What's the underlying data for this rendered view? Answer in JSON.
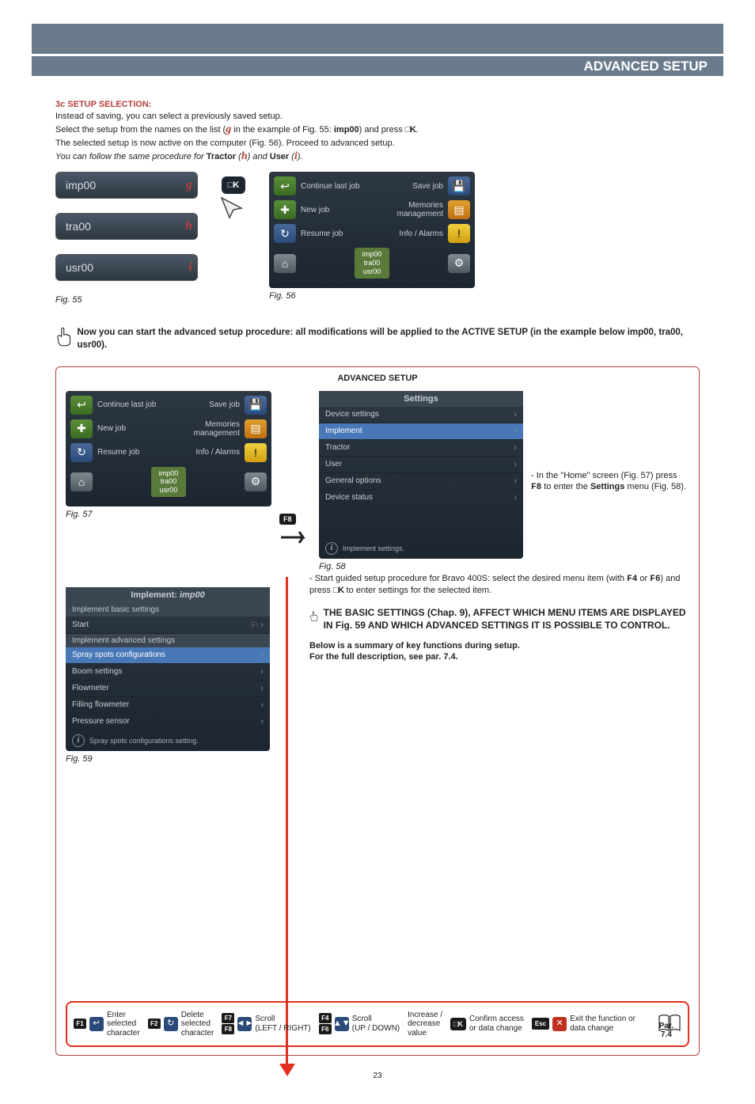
{
  "header": {
    "title": "ADVANCED SETUP"
  },
  "section3c": {
    "heading": "3c SETUP SELECTION:",
    "line1": "Instead of saving, you can select a previously saved setup.",
    "line2a": "Select the setup from the names on the list (",
    "g": "g",
    "line2b": " in the example of Fig. 55: ",
    "imp00": "imp00",
    "line2c": ") and press ",
    "ok": "□K",
    "line2d": ".",
    "line3": "The selected setup is now active on the computer (Fig. 56). Proceed to advanced setup.",
    "line4a": "You can follow the same procedure for ",
    "tractor": "Tractor",
    "line4b": " (",
    "h": "h",
    "line4c": ") and ",
    "user": "User",
    "line4d": " (",
    "i": "i",
    "line4e": ")."
  },
  "fig55": {
    "items": [
      {
        "label": "imp00",
        "letter": "g"
      },
      {
        "label": "tra00",
        "letter": "h"
      },
      {
        "label": "usr00",
        "letter": "i"
      }
    ],
    "caption": "Fig. 55",
    "ok_label": "□K"
  },
  "fig56": {
    "rows": [
      {
        "left_icon": "↩",
        "left_color": "green",
        "left_label": "Continue last job",
        "right_label": "Save job",
        "right_icon": "💾",
        "right_color": "blue"
      },
      {
        "left_icon": "✚",
        "left_color": "green",
        "left_label": "New job",
        "right_label": "Memories\nmanagement",
        "right_icon": "▤",
        "right_color": "orange"
      },
      {
        "left_icon": "↻",
        "left_color": "blue",
        "left_label": "Resume job",
        "right_label": "Info / Alarms",
        "right_icon": "!",
        "right_color": "yellow"
      }
    ],
    "status": [
      "imp00",
      "tra00",
      "usr00"
    ],
    "caption": "Fig. 56"
  },
  "main_note": "Now you can start the advanced setup procedure: all modifications will be applied to the ACTIVE SETUP (in the example below imp00, tra00, usr00).",
  "advanced_setup": {
    "title": "ADVANCED SETUP",
    "fig57_caption": "Fig. 57",
    "fig58": {
      "header": "Settings",
      "items": [
        {
          "label": "Device settings",
          "highlight": false
        },
        {
          "label": "Implement",
          "highlight": true
        },
        {
          "label": "Tractor",
          "highlight": false
        },
        {
          "label": "User",
          "highlight": false
        },
        {
          "label": "General options",
          "highlight": false
        },
        {
          "label": "Device status",
          "highlight": false
        }
      ],
      "info": "Implement settings.",
      "caption": "Fig. 58",
      "fb_label": "F8"
    },
    "right_text_a": "- In the \"Home\" screen (Fig. 57) press ",
    "right_text_fb": "F8",
    "right_text_b": " to enter the ",
    "right_text_settings": "Settings",
    "right_text_c": " menu (Fig. 58).",
    "fig59": {
      "header": "Implement: imp00",
      "section1": "Implement basic settings",
      "start": "Start",
      "section2": "Implement advanced settings",
      "items": [
        {
          "label": "Spray spots configurations",
          "highlight": true
        },
        {
          "label": "Boom settings",
          "highlight": false
        },
        {
          "label": "Flowmeter",
          "highlight": false
        },
        {
          "label": "Filling flowmeter",
          "highlight": false
        },
        {
          "label": "Pressure sensor",
          "highlight": false
        }
      ],
      "info": "Spray spots configurations setting.",
      "caption": "Fig. 59"
    },
    "guide_text": {
      "line1a": "- Start guided setup procedure for Bravo 400S: select the desired menu item (with ",
      "f4": "F4",
      "line1b": " or ",
      "f6": "F6",
      "line1c": ") and press ",
      "ok": "□K",
      "line1d": " to enter settings for the selected item.",
      "bold1": "THE BASIC SETTINGS (Chap. 9), AFFECT WHICH MENU ITEMS ARE DISPLAYED IN Fig. 59 AND WHICH ADVANCED SETTINGS IT IS POSSIBLE TO CONTROL.",
      "bold2": "Below is a summary of key functions during setup.",
      "bold3": "For the full description, see par. 7.4."
    }
  },
  "key_functions": {
    "items": [
      {
        "keys": [
          "F1"
        ],
        "icon": "↵",
        "icon_bg": "#2a4a7a",
        "text": "Enter\nselected\ncharacter"
      },
      {
        "keys": [
          "F2"
        ],
        "icon": "↻",
        "icon_bg": "#2a4a7a",
        "text": "Delete\nselected\ncharacter"
      },
      {
        "keys": [
          "F7",
          "F8"
        ],
        "icon": "◄►",
        "icon_bg": "#2a4a7a",
        "text": "Scroll\n(LEFT / RIGHT)"
      },
      {
        "keys": [
          "F4",
          "F6"
        ],
        "icon": "▲▼",
        "icon_bg": "#2a4a7a",
        "text": "Scroll\n(UP / DOWN)"
      },
      {
        "keys": [],
        "text": "Increase /\ndecrease\nvalue"
      },
      {
        "keys": [],
        "ok": "□K",
        "text": "Confirm access\nor data change"
      },
      {
        "keys": [],
        "esc": "Esc",
        "icon": "✕",
        "icon_bg": "#c03020",
        "text": "Exit the function or\ndata change"
      }
    ],
    "par_ref": "Par.\n7.4"
  },
  "page_number": "23",
  "colors": {
    "header_bg": "#6a7b8c",
    "accent_red": "#b5403c",
    "border_red": "#e03020",
    "screen_bg": "#2d3842"
  }
}
